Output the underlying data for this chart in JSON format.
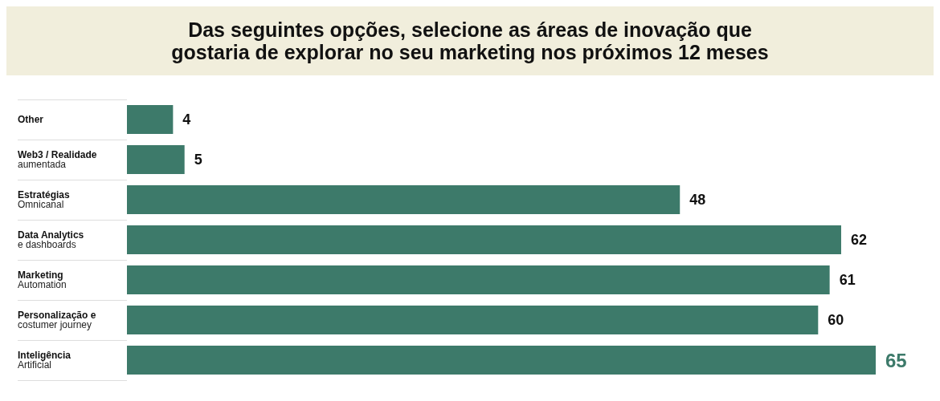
{
  "chart_data": {
    "type": "bar",
    "orientation": "horizontal",
    "title": "Das seguintes opções, selecione as áreas de inovação que\ngostaria de explorar no seu marketing nos próximos 12 meses",
    "categories": [
      "Other",
      "Web3 / Realidade\naumentada",
      "Estratégias\nOmnicanal",
      "Data Analytics\ne dashboards",
      "Marketing\nAutomation",
      "Personalização e\ncostumer journey",
      "Inteligência\nArtificial"
    ],
    "values": [
      4,
      5,
      48,
      62,
      61,
      60,
      65
    ],
    "color": "#3d7a6a",
    "data_labels": true
  }
}
